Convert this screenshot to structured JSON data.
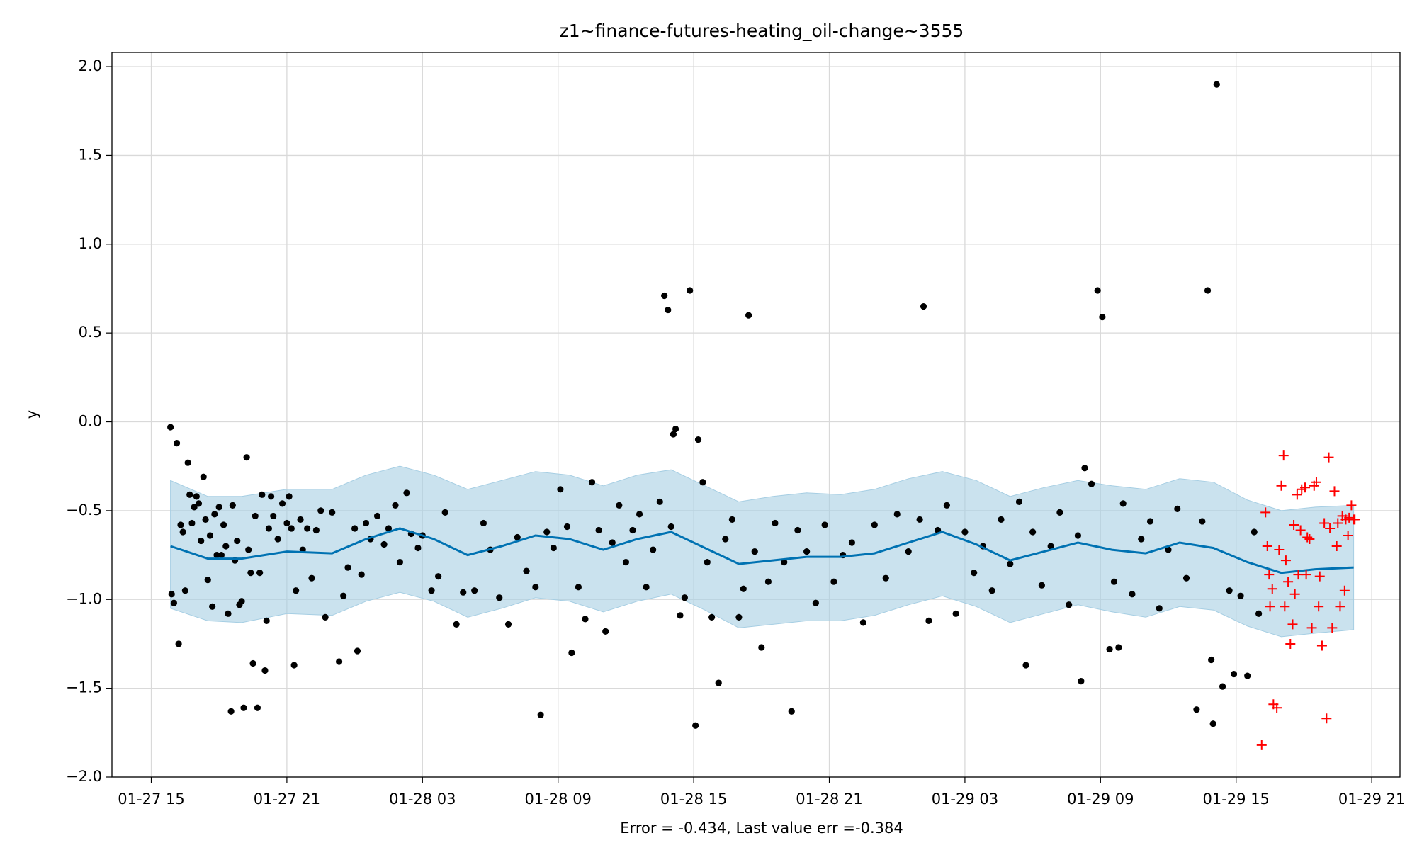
{
  "chart_data": {
    "type": "forecast",
    "title": "z1~finance-futures-heating_oil-change~3555",
    "x_label": "Error = -0.434, Last value err =-0.384",
    "y_label": "y",
    "grid": true,
    "xlim": [
      13.26,
      70.25
    ],
    "ylim": [
      -2.0,
      2.08
    ],
    "xticks": [
      {
        "value": 15,
        "label": "01-27 15"
      },
      {
        "value": 21,
        "label": "01-27 21"
      },
      {
        "value": 27,
        "label": "01-28 03"
      },
      {
        "value": 33,
        "label": "01-28 09"
      },
      {
        "value": 39,
        "label": "01-28 15"
      },
      {
        "value": 45,
        "label": "01-28 21"
      },
      {
        "value": 51,
        "label": "01-29 03"
      },
      {
        "value": 57,
        "label": "01-29 09"
      },
      {
        "value": 63,
        "label": "01-29 15"
      },
      {
        "value": 69,
        "label": "01-29 21"
      }
    ],
    "yticks": [
      {
        "value": -2.0,
        "label": "−2.0"
      },
      {
        "value": -1.5,
        "label": "−1.5"
      },
      {
        "value": -1.0,
        "label": "−1.0"
      },
      {
        "value": -0.5,
        "label": "−0.5"
      },
      {
        "value": 0,
        "label": "0.0"
      },
      0.5,
      {
        "value": 1.0,
        "label": "1.0"
      },
      1.5,
      {
        "value": 2.0,
        "label": "2.0"
      }
    ],
    "forecast": {
      "color": "#0072b2",
      "band_color": "#a6cee3",
      "x": [
        15.85,
        17.5,
        19,
        21,
        23,
        24.5,
        26,
        27.5,
        29,
        30.5,
        32,
        33.5,
        35,
        36.5,
        38,
        39.5,
        41,
        42.5,
        44,
        45.5,
        47,
        48.5,
        50,
        51.5,
        53,
        54.5,
        56,
        57.5,
        59,
        60.5,
        62,
        63.5,
        65,
        66.5,
        68.2
      ],
      "values": [
        -0.7,
        -0.77,
        -0.77,
        -0.73,
        -0.74,
        -0.66,
        -0.6,
        -0.66,
        -0.75,
        -0.7,
        -0.64,
        -0.66,
        -0.72,
        -0.66,
        -0.62,
        -0.71,
        -0.8,
        -0.78,
        -0.76,
        -0.76,
        -0.74,
        -0.68,
        -0.62,
        -0.69,
        -0.78,
        -0.73,
        -0.68,
        -0.72,
        -0.74,
        -0.68,
        -0.71,
        -0.79,
        -0.85,
        -0.83,
        -0.82
      ],
      "upper": [
        -0.33,
        -0.42,
        -0.42,
        -0.38,
        -0.38,
        -0.3,
        -0.25,
        -0.3,
        -0.38,
        -0.33,
        -0.28,
        -0.3,
        -0.36,
        -0.3,
        -0.27,
        -0.36,
        -0.45,
        -0.42,
        -0.4,
        -0.41,
        -0.38,
        -0.32,
        -0.28,
        -0.33,
        -0.42,
        -0.37,
        -0.33,
        -0.36,
        -0.38,
        -0.32,
        -0.34,
        -0.44,
        -0.5,
        -0.48,
        -0.47
      ],
      "lower": [
        -1.05,
        -1.12,
        -1.13,
        -1.08,
        -1.09,
        -1.01,
        -0.96,
        -1.01,
        -1.1,
        -1.05,
        -0.99,
        -1.01,
        -1.07,
        -1.01,
        -0.97,
        -1.06,
        -1.16,
        -1.14,
        -1.12,
        -1.12,
        -1.09,
        -1.03,
        -0.98,
        -1.04,
        -1.13,
        -1.08,
        -1.03,
        -1.07,
        -1.1,
        -1.04,
        -1.06,
        -1.15,
        -1.21,
        -1.19,
        -1.17
      ]
    },
    "points": {
      "color": "#000000",
      "x": [
        15.85,
        15.9,
        16.0,
        16.13,
        16.21,
        16.3,
        16.4,
        16.5,
        16.62,
        16.7,
        16.8,
        16.9,
        17.0,
        17.1,
        17.2,
        17.31,
        17.4,
        17.5,
        17.6,
        17.7,
        17.8,
        17.9,
        18.0,
        18.1,
        18.2,
        18.3,
        18.4,
        18.53,
        18.6,
        18.7,
        18.8,
        18.9,
        19.0,
        19.09,
        19.22,
        19.3,
        19.4,
        19.5,
        19.6,
        19.7,
        19.8,
        19.9,
        20.03,
        20.1,
        20.2,
        20.3,
        20.4,
        20.6,
        20.8,
        21.0,
        21.1,
        21.2,
        21.32,
        21.4,
        21.6,
        21.7,
        21.9,
        22.1,
        22.3,
        22.5,
        22.7,
        23.0,
        23.31,
        23.5,
        23.7,
        24.0,
        24.12,
        24.3,
        24.5,
        24.7,
        25.0,
        25.3,
        25.5,
        25.8,
        26.0,
        26.3,
        26.5,
        26.8,
        27.0,
        27.4,
        27.7,
        28.0,
        28.5,
        28.8,
        29.3,
        29.7,
        30.0,
        30.4,
        30.8,
        31.2,
        31.6,
        32.0,
        32.23,
        32.5,
        32.8,
        33.1,
        33.4,
        33.6,
        33.9,
        34.2,
        34.5,
        34.8,
        35.1,
        35.4,
        35.7,
        36.0,
        36.3,
        36.6,
        36.9,
        37.2,
        37.5,
        37.7,
        37.86,
        38.0,
        38.1,
        38.2,
        38.4,
        38.6,
        38.83,
        39.08,
        39.2,
        39.4,
        39.6,
        39.8,
        40.1,
        40.4,
        40.7,
        41.0,
        41.2,
        41.43,
        41.7,
        42.0,
        42.3,
        42.6,
        43.0,
        43.33,
        43.6,
        44.0,
        44.4,
        44.8,
        45.2,
        45.6,
        46.0,
        46.5,
        47.0,
        47.5,
        48.0,
        48.5,
        49.0,
        49.17,
        49.4,
        49.8,
        50.2,
        50.6,
        51.0,
        51.4,
        51.8,
        52.2,
        52.6,
        53.0,
        53.4,
        53.7,
        54.0,
        54.4,
        54.8,
        55.2,
        55.6,
        56.0,
        56.14,
        56.3,
        56.6,
        56.87,
        57.08,
        57.4,
        57.6,
        57.8,
        58.0,
        58.4,
        58.8,
        59.2,
        59.6,
        60.0,
        60.4,
        60.8,
        61.25,
        61.5,
        61.74,
        61.9,
        61.98,
        62.14,
        62.4,
        62.7,
        62.9,
        63.2,
        63.5,
        63.8,
        64.0
      ],
      "values": [
        -0.03,
        -0.97,
        -1.02,
        -0.12,
        -1.25,
        -0.58,
        -0.62,
        -0.95,
        -0.23,
        -0.41,
        -0.57,
        -0.48,
        -0.42,
        -0.46,
        -0.67,
        -0.31,
        -0.55,
        -0.89,
        -0.64,
        -1.04,
        -0.52,
        -0.75,
        -0.48,
        -0.75,
        -0.58,
        -0.7,
        -1.08,
        -1.63,
        -0.47,
        -0.78,
        -0.67,
        -1.03,
        -1.01,
        -1.61,
        -0.2,
        -0.72,
        -0.85,
        -1.36,
        -0.53,
        -1.61,
        -0.85,
        -0.41,
        -1.4,
        -1.12,
        -0.6,
        -0.42,
        -0.53,
        -0.66,
        -0.46,
        -0.57,
        -0.42,
        -0.6,
        -1.37,
        -0.95,
        -0.55,
        -0.72,
        -0.6,
        -0.88,
        -0.61,
        -0.5,
        -1.1,
        -0.51,
        -1.35,
        -0.98,
        -0.82,
        -0.6,
        -1.29,
        -0.86,
        -0.57,
        -0.66,
        -0.53,
        -0.69,
        -0.6,
        -0.47,
        -0.79,
        -0.4,
        -0.63,
        -0.71,
        -0.64,
        -0.95,
        -0.87,
        -0.51,
        -1.14,
        -0.96,
        -0.95,
        -0.57,
        -0.72,
        -0.99,
        -1.14,
        -0.65,
        -0.84,
        -0.93,
        -1.65,
        -0.62,
        -0.71,
        -0.38,
        -0.59,
        -1.3,
        -0.93,
        -1.11,
        -0.34,
        -0.61,
        -1.18,
        -0.68,
        -0.47,
        -0.79,
        -0.61,
        -0.52,
        -0.93,
        -0.72,
        -0.45,
        0.71,
        0.63,
        -0.59,
        -0.07,
        -0.04,
        -1.09,
        -0.99,
        0.74,
        -1.71,
        -0.1,
        -0.34,
        -0.79,
        -1.1,
        -1.47,
        -0.66,
        -0.55,
        -1.1,
        -0.94,
        0.6,
        -0.73,
        -1.27,
        -0.9,
        -0.57,
        -0.79,
        -1.63,
        -0.61,
        -0.73,
        -1.02,
        -0.58,
        -0.9,
        -0.75,
        -0.68,
        -1.13,
        -0.58,
        -0.88,
        -0.52,
        -0.73,
        -0.55,
        0.65,
        -1.12,
        -0.61,
        -0.47,
        -1.08,
        -0.62,
        -0.85,
        -0.7,
        -0.95,
        -0.55,
        -0.8,
        -0.45,
        -1.37,
        -0.62,
        -0.92,
        -0.7,
        -0.51,
        -1.03,
        -0.64,
        -1.46,
        -0.26,
        -0.35,
        0.74,
        0.59,
        -1.28,
        -0.9,
        -1.27,
        -0.46,
        -0.97,
        -0.66,
        -0.56,
        -1.05,
        -0.72,
        -0.49,
        -0.88,
        -1.62,
        -0.56,
        0.74,
        -1.34,
        -1.7,
        1.9,
        -1.49,
        -0.95,
        -1.42,
        -0.98,
        -1.43,
        -0.62,
        -1.08
      ]
    },
    "actual": {
      "color": "#ff0000",
      "x": [
        64.13,
        64.3,
        64.38,
        64.46,
        64.5,
        64.6,
        64.65,
        64.8,
        64.9,
        65.0,
        65.1,
        65.15,
        65.2,
        65.3,
        65.4,
        65.5,
        65.55,
        65.6,
        65.7,
        65.75,
        65.85,
        65.9,
        66.05,
        66.1,
        66.15,
        66.25,
        66.35,
        66.45,
        66.55,
        66.65,
        66.7,
        66.8,
        66.9,
        67.0,
        67.1,
        67.15,
        67.25,
        67.35,
        67.45,
        67.5,
        67.6,
        67.7,
        67.8,
        67.85,
        67.95,
        68.0,
        68.1,
        68.2,
        68.25
      ],
      "values": [
        -1.82,
        -0.51,
        -0.7,
        -0.86,
        -1.04,
        -0.94,
        -1.59,
        -1.61,
        -0.72,
        -0.36,
        -0.19,
        -1.04,
        -0.78,
        -0.9,
        -1.25,
        -1.14,
        -0.58,
        -0.97,
        -0.41,
        -0.86,
        -0.61,
        -0.38,
        -0.37,
        -0.86,
        -0.65,
        -0.66,
        -1.16,
        -0.36,
        -0.34,
        -1.04,
        -0.87,
        -1.26,
        -0.57,
        -1.67,
        -0.2,
        -0.6,
        -1.16,
        -0.39,
        -0.7,
        -0.57,
        -1.04,
        -0.53,
        -0.95,
        -0.55,
        -0.64,
        -0.54,
        -0.47,
        -0.55,
        -0.55
      ]
    }
  }
}
